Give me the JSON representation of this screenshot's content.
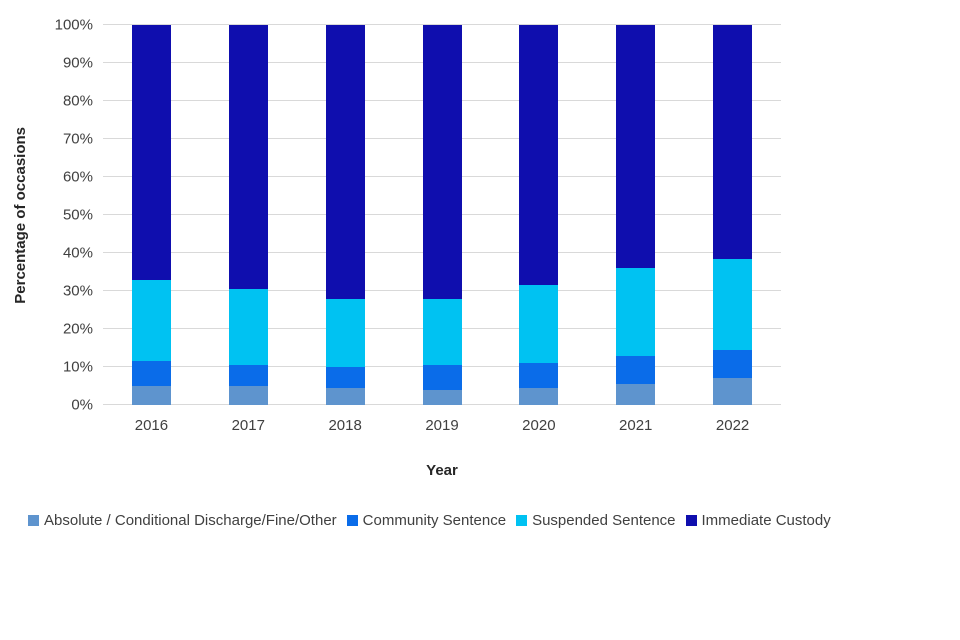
{
  "chart_data": {
    "type": "bar",
    "subtype": "stacked-100-percent",
    "title": "",
    "categories": [
      "2016",
      "2017",
      "2018",
      "2019",
      "2020",
      "2021",
      "2022"
    ],
    "series": [
      {
        "name": "Absolute / Conditional Discharge/Fine/Other",
        "color": "#5E94CE",
        "values": [
          5,
          5,
          4.5,
          4,
          4.5,
          5.5,
          7
        ]
      },
      {
        "name": "Community Sentence",
        "color": "#0A6CE9",
        "values": [
          6.5,
          5.5,
          5.5,
          6.5,
          6.5,
          7.5,
          7.5
        ]
      },
      {
        "name": "Suspended Sentence",
        "color": "#00C2F2",
        "values": [
          21.5,
          20,
          18,
          17.5,
          20.5,
          23,
          24
        ]
      },
      {
        "name": "Immediate Custody",
        "color": "#0F0EAE",
        "values": [
          67,
          69.5,
          72,
          72,
          68.5,
          64,
          61.5
        ]
      }
    ],
    "xlabel": "Year",
    "ylabel": "Percentage of occasions",
    "ylim": [
      0,
      100
    ],
    "y_tick_step": 10,
    "y_tick_labels": [
      "0%",
      "10%",
      "20%",
      "30%",
      "40%",
      "50%",
      "60%",
      "70%",
      "80%",
      "90%",
      "100%"
    ],
    "grid": "horizontal",
    "gridline_color": "#d9d9d9",
    "legend_position": "bottom"
  }
}
